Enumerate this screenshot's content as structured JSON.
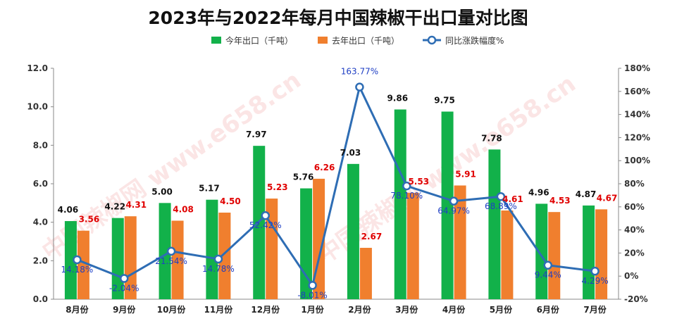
{
  "chart_data": {
    "type": "bar",
    "title": "2023年与2022年每月中国辣椒干出口量对比图",
    "categories": [
      "8月份",
      "9月份",
      "10月份",
      "11月份",
      "12月份",
      "1月份",
      "2月份",
      "3月份",
      "4月份",
      "5月份",
      "6月份",
      "7月份"
    ],
    "series": [
      {
        "name": "今年出口（千吨）",
        "type": "bar",
        "color": "#12b14a",
        "axis": "left",
        "values": [
          4.06,
          4.22,
          5.0,
          5.17,
          7.97,
          5.76,
          7.03,
          9.86,
          9.75,
          7.78,
          4.96,
          4.87
        ],
        "labels": [
          "4.06",
          "4.22",
          "5.00",
          "5.17",
          "7.97",
          "5.76",
          "7.03",
          "9.86",
          "9.75",
          "7.78",
          "4.96",
          "4.87"
        ]
      },
      {
        "name": "去年出口（千吨）",
        "type": "bar",
        "color": "#f07f2e",
        "axis": "left",
        "values": [
          3.56,
          4.31,
          4.08,
          4.5,
          5.23,
          6.26,
          2.67,
          5.53,
          5.91,
          4.61,
          4.53,
          4.67
        ],
        "labels": [
          "3.56",
          "4.31",
          "4.08",
          "4.50",
          "5.23",
          "6.26",
          "2.67",
          "5.53",
          "5.91",
          "4.61",
          "4.53",
          "4.67"
        ]
      },
      {
        "name": "同比涨跌幅度%",
        "type": "line",
        "color": "#2e6db4",
        "axis": "right",
        "values": [
          14.18,
          -2.04,
          21.54,
          14.78,
          52.42,
          -8.01,
          163.77,
          78.1,
          64.97,
          68.89,
          9.44,
          4.29
        ],
        "labels": [
          "14.18%",
          "-2.04%",
          "21.54%",
          "14.78%",
          "52.42%",
          "-8.01%",
          "163.77%",
          "78.10%",
          "64.97%",
          "68.89%",
          "9.44%",
          "4.29%"
        ]
      }
    ],
    "y_left": {
      "min": 0,
      "max": 12,
      "step": 2,
      "ticks": [
        "0.0",
        "2.0",
        "4.0",
        "6.0",
        "8.0",
        "10.0",
        "12.0"
      ]
    },
    "y_right": {
      "min": -20,
      "max": 180,
      "step": 20,
      "ticks": [
        "-20%",
        "0%",
        "20%",
        "40%",
        "60%",
        "80%",
        "100%",
        "120%",
        "140%",
        "160%",
        "180%"
      ]
    },
    "grid": false,
    "legend_position": "top-center",
    "watermark": "中国辣椒网 www.e658.cn"
  }
}
